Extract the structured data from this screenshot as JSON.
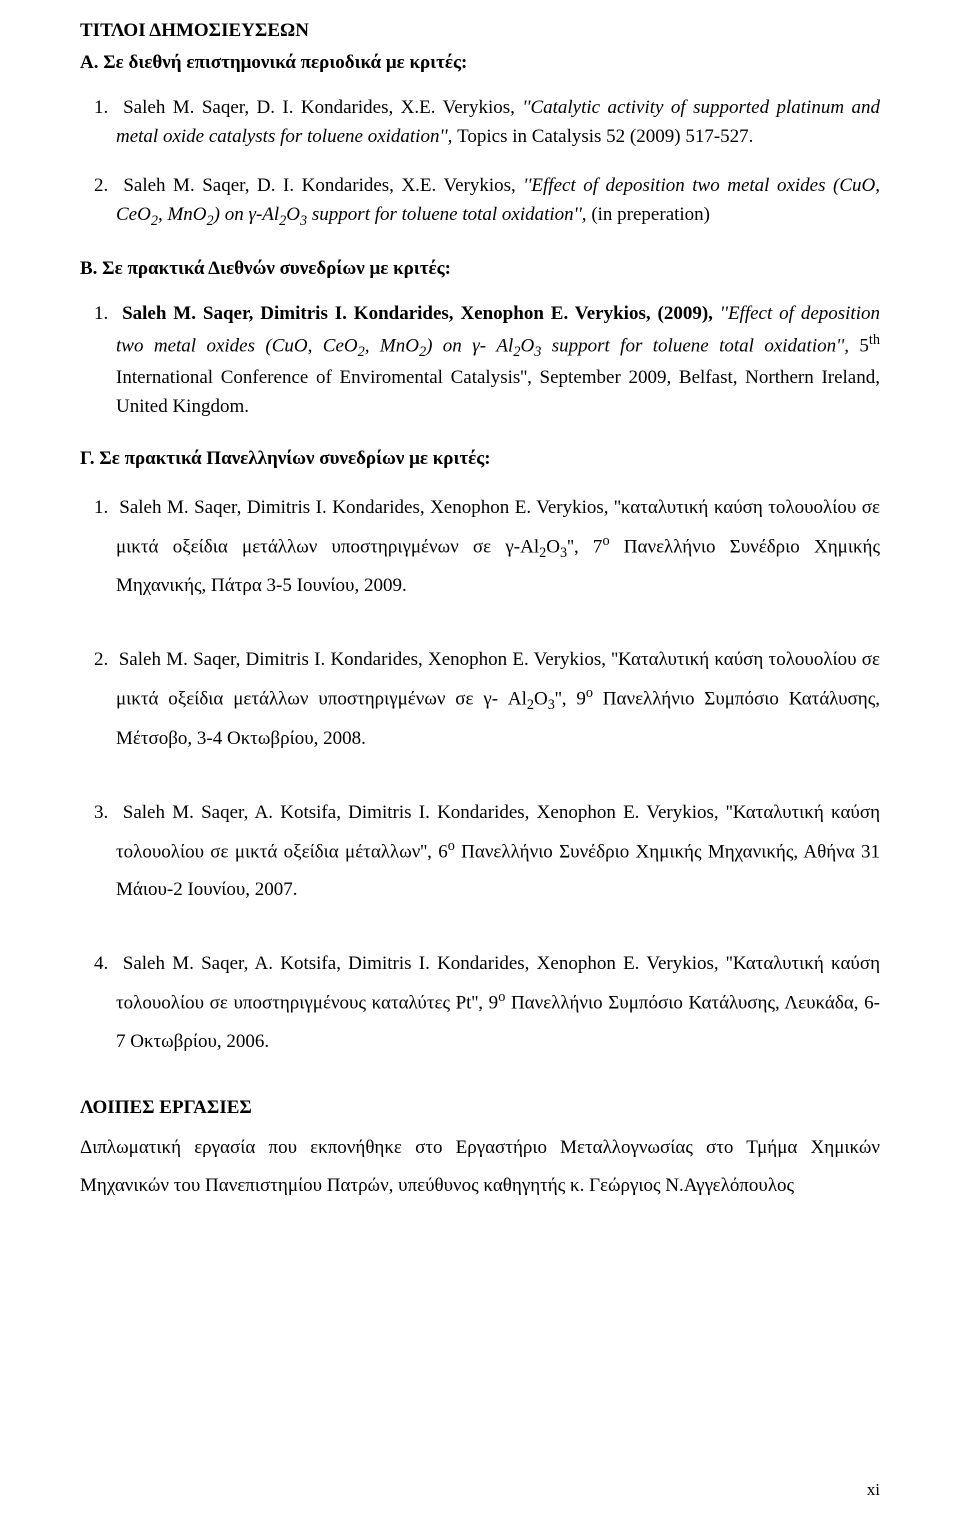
{
  "title": "ΤΙΤΛΟΙ ΔΗΜΟΣΙΕΥΣΕΩΝ",
  "sectionA": {
    "heading": "Α. Σε διεθνή επιστημονικά περιοδικά με κριτές:",
    "item1_num": "1.",
    "item1_authors": "Saleh M. Saqer, D. I. Kondarides, X.E. Verykios, ",
    "item1_title": "''Catalytic activity of supported platinum and metal oxide catalysts for toluene oxidation'', ",
    "item1_src": "Topics in Catalysis 52 (2009) 517-527.",
    "item2_num": "2.",
    "item2_authors": "Saleh M. Saqer, D. I. Kondarides, X.E. Verykios, ",
    "item2_title": "''Effect of deposition two metal oxides (CuO, CeO",
    "item2_title2": ", MnO",
    "item2_title3": ") on γ-Al",
    "item2_title4": "O",
    "item2_title5": " support for toluene total oxidation'', ",
    "item2_src": "(in preperation)"
  },
  "sectionB": {
    "heading": "Β. Σε πρακτικά Διεθνών συνεδρίων με κριτές:",
    "item1_num": "1.",
    "item1_authors": "Saleh M. Saqer, Dimitris I. Kondarides, Xenophon E. Verykios, (2009), ",
    "item1_title1": "''Effect of deposition two metal oxides (CuO, CeO",
    "item1_title2": ", MnO",
    "item1_title3": ") on γ- Al",
    "item1_title4": "O",
    "item1_title5": " support for toluene total oxidation'', ",
    "item1_rest": "5",
    "item1_rest2": " International Conference of Enviromental Catalysis'', September 2009, Belfast, Northern Ireland, United Kingdom."
  },
  "sectionC": {
    "heading": "Γ. Σε πρακτικά Πανελληνίων συνεδρίων με κριτές:",
    "item1_num": "1.",
    "item1_p1": "Saleh M. Saqer, Dimitris I. Kondarides, Xenophon E. Verykios, ''καταλυτική καύση τολουολίου σε μικτά οξείδια μετάλλων υποστηριγμένων σε γ-Al",
    "item1_p2": "O",
    "item1_p3": "'', 7",
    "item1_p4": " Πανελλήνιο Συνέδριο Χημικής Μηχανικής, Πάτρα 3-5 Ιουνίου, 2009.",
    "item2_num": "2.",
    "item2_p1": "Saleh M. Saqer, Dimitris I. Kondarides, Xenophon E. Verykios, ''Καταλυτική καύση τολουολίου σε μικτά οξείδια μετάλλων υποστηριγμένων σε γ- Al",
    "item2_p2": "O",
    "item2_p3": "'', 9",
    "item2_p4": " Πανελλήνιο Συμπόσιο Κατάλυσης, Μέτσοβο, 3-4 Οκτωβρίου, 2008.",
    "item3_num": "3.",
    "item3_p1": "Saleh M. Saqer, A. Kotsifa, Dimitris I. Kondarides, Xenophon E. Verykios, ''Καταλυτική καύση τολουολίου σε μικτά οξείδια μέταλλων'', 6",
    "item3_p2": " Πανελλήνιο Συνέδριο Χημικής Μηχανικής, Αθήνα 31 Μάιου-2 Ιουνίου, 2007.",
    "item4_num": "4.",
    "item4_p1": "Saleh M. Saqer, A. Kotsifa, Dimitris I. Kondarides, Xenophon E. Verykios, ''Καταλυτική καύση τολουολίου σε υποστηριγμένους καταλύτες Pt'', 9",
    "item4_p2": " Πανελλήνιο Συμπόσιο Κατάλυσης, Λευκάδα, 6-7 Οκτωβρίου, 2006."
  },
  "other": {
    "heading": "ΛΟΙΠΕΣ ΕΡΓΑΣΙΕΣ",
    "text": "Διπλωματική εργασία που εκπονήθηκε στο Εργαστήριο Μεταλλογνωσίας στο Τμήμα Χημικών Μηχανικών  του Πανεπιστημίου Πατρών, υπεύθυνος καθηγητής κ. Γεώργιος Ν.Αγγελόπουλος"
  },
  "pageNumber": "xi",
  "sub2": "2",
  "sub3": "3",
  "supO": "ο",
  "supTh": "th"
}
